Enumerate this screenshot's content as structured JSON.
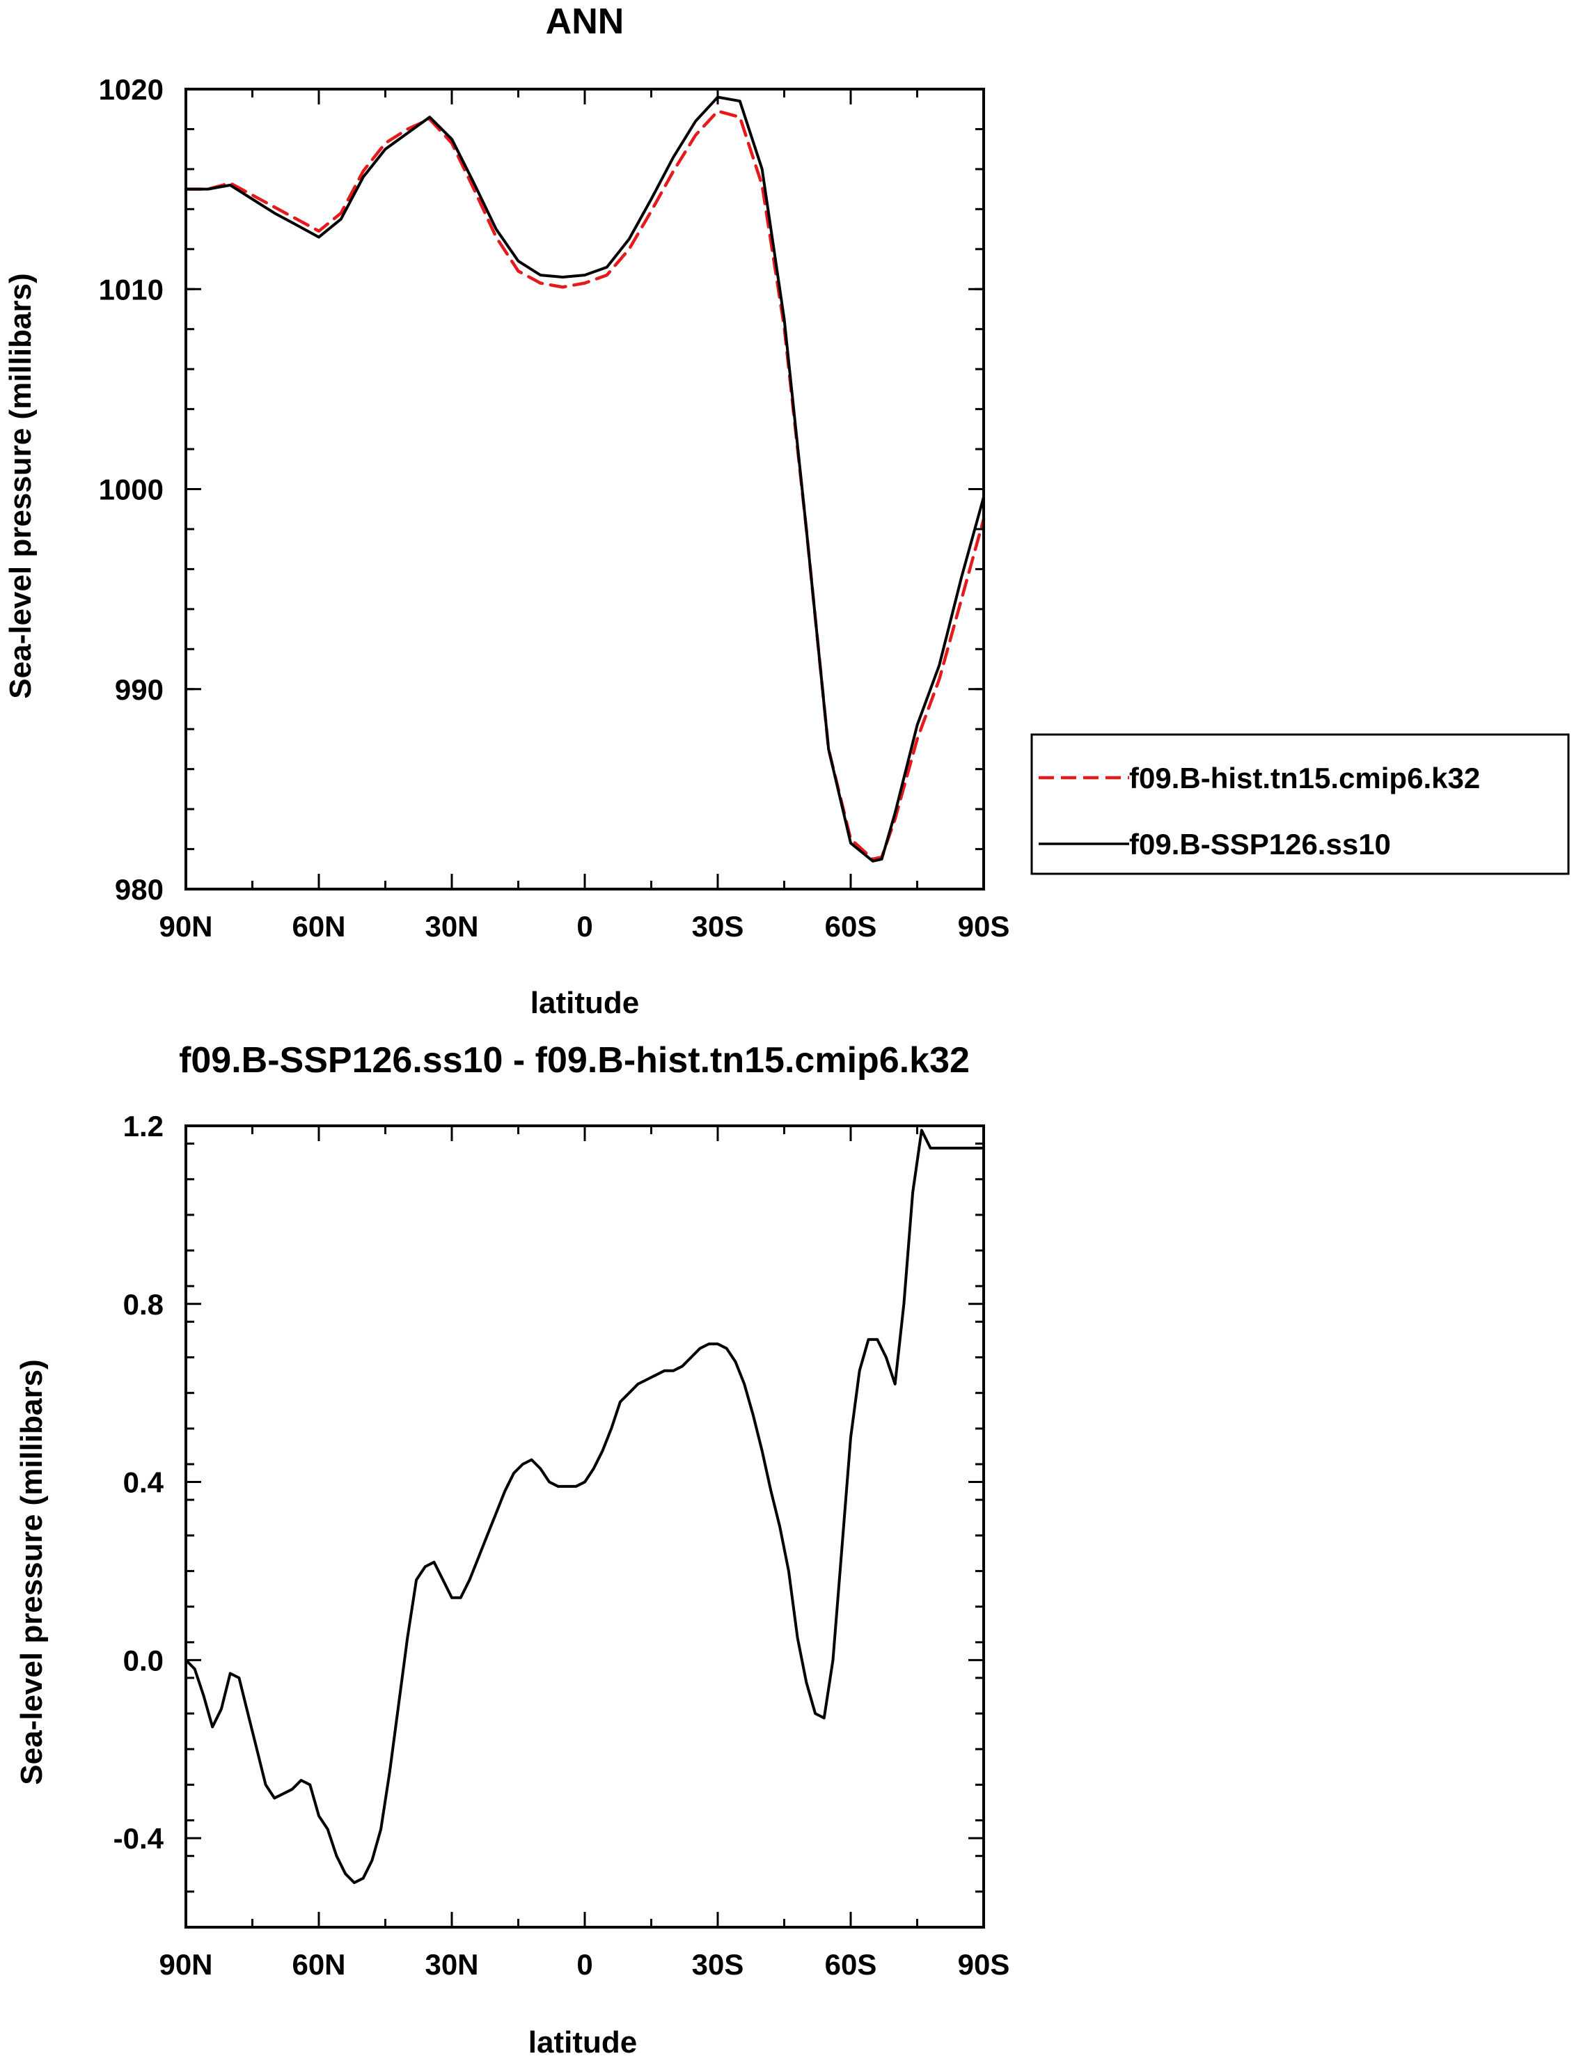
{
  "chart_data": [
    {
      "type": "line",
      "title": "ANN",
      "xlabel": "latitude",
      "ylabel": "Sea-level pressure (millibars)",
      "x_ticks": [
        "90N",
        "60N",
        "30N",
        "0",
        "30S",
        "60S",
        "90S"
      ],
      "x_tick_values": [
        90,
        60,
        30,
        0,
        -30,
        -60,
        -90
      ],
      "xlim": [
        90,
        -90
      ],
      "ylim": [
        980,
        1020
      ],
      "y_ticks": [
        "980",
        "990",
        "1000",
        "1010",
        "1020"
      ],
      "y_tick_values": [
        980,
        990,
        1000,
        1010,
        1020
      ],
      "grid": false,
      "legend_position": "right",
      "series": [
        {
          "name": "f09.B-hist.tn15.cmip6.k32",
          "color": "#e41a1c",
          "style": "dashed",
          "x": [
            90,
            85,
            80,
            75,
            70,
            65,
            60,
            55,
            50,
            45,
            40,
            35,
            30,
            25,
            20,
            15,
            10,
            5,
            0,
            -5,
            -10,
            -15,
            -20,
            -25,
            -30,
            -35,
            -40,
            -45,
            -50,
            -55,
            -60,
            -65,
            -67,
            -70,
            -75,
            -80,
            -85,
            -90
          ],
          "values": [
            1015.0,
            1015.0,
            1015.3,
            1014.7,
            1014.1,
            1013.5,
            1012.9,
            1013.8,
            1015.9,
            1017.3,
            1018.0,
            1018.5,
            1017.3,
            1015.0,
            1012.6,
            1010.9,
            1010.3,
            1010.1,
            1010.3,
            1010.7,
            1012.0,
            1013.9,
            1015.9,
            1017.7,
            1018.9,
            1018.6,
            1015.2,
            1008.1,
            998.0,
            987.0,
            982.5,
            981.5,
            981.6,
            983.5,
            987.5,
            990.5,
            994.5,
            998.5
          ]
        },
        {
          "name": "f09.B-SSP126.ss10",
          "color": "#000000",
          "style": "solid",
          "x": [
            90,
            85,
            80,
            75,
            70,
            65,
            60,
            55,
            50,
            45,
            40,
            35,
            30,
            25,
            20,
            15,
            10,
            5,
            0,
            -5,
            -10,
            -15,
            -20,
            -25,
            -30,
            -35,
            -40,
            -45,
            -50,
            -55,
            -60,
            -65,
            -67,
            -70,
            -75,
            -80,
            -85,
            -90
          ],
          "values": [
            1015.0,
            1015.0,
            1015.2,
            1014.5,
            1013.8,
            1013.2,
            1012.6,
            1013.5,
            1015.6,
            1017.0,
            1017.8,
            1018.6,
            1017.5,
            1015.3,
            1013.0,
            1011.4,
            1010.7,
            1010.6,
            1010.7,
            1011.1,
            1012.5,
            1014.5,
            1016.6,
            1018.4,
            1019.6,
            1019.4,
            1016.0,
            1008.5,
            998.0,
            987.0,
            982.3,
            981.4,
            981.5,
            983.8,
            988.2,
            991.2,
            995.6,
            999.6
          ]
        }
      ]
    },
    {
      "type": "line",
      "title": "f09.B-SSP126.ss10 - f09.B-hist.tn15.cmip6.k32",
      "xlabel": "latitude",
      "ylabel": "Sea-level pressure (millibars)",
      "x_ticks": [
        "90N",
        "60N",
        "30N",
        "0",
        "30S",
        "60S",
        "90S"
      ],
      "x_tick_values": [
        90,
        60,
        30,
        0,
        -30,
        -60,
        -90
      ],
      "xlim": [
        90,
        -90
      ],
      "ylim": [
        -0.6,
        1.2
      ],
      "y_ticks": [
        "-0.4",
        "0.0",
        "0.4",
        "0.8",
        "1.2"
      ],
      "y_tick_values": [
        -0.4,
        0.0,
        0.4,
        0.8,
        1.2
      ],
      "grid": false,
      "series": [
        {
          "color": "#000000",
          "style": "solid",
          "x": [
            90,
            88,
            86,
            84,
            82,
            80,
            78,
            76,
            74,
            72,
            70,
            68,
            66,
            64,
            62,
            60,
            58,
            56,
            54,
            52,
            50,
            48,
            46,
            44,
            42,
            40,
            38,
            36,
            34,
            32,
            30,
            28,
            26,
            24,
            22,
            20,
            18,
            16,
            14,
            12,
            10,
            8,
            6,
            4,
            2,
            0,
            -2,
            -4,
            -6,
            -8,
            -10,
            -12,
            -14,
            -16,
            -18,
            -20,
            -22,
            -24,
            -26,
            -28,
            -30,
            -32,
            -34,
            -36,
            -38,
            -40,
            -42,
            -44,
            -46,
            -48,
            -50,
            -52,
            -54,
            -56,
            -58,
            -60,
            -62,
            -64,
            -66,
            -68,
            -70,
            -72,
            -74,
            -76,
            -78,
            -80,
            -82,
            -84,
            -86,
            -88,
            -90
          ],
          "values": [
            0.0,
            -0.02,
            -0.08,
            -0.15,
            -0.11,
            -0.03,
            -0.04,
            -0.12,
            -0.2,
            -0.28,
            -0.31,
            -0.3,
            -0.29,
            -0.27,
            -0.28,
            -0.35,
            -0.38,
            -0.44,
            -0.48,
            -0.5,
            -0.49,
            -0.45,
            -0.38,
            -0.25,
            -0.1,
            0.05,
            0.18,
            0.21,
            0.22,
            0.18,
            0.14,
            0.14,
            0.18,
            0.23,
            0.28,
            0.33,
            0.38,
            0.42,
            0.44,
            0.45,
            0.43,
            0.4,
            0.39,
            0.39,
            0.39,
            0.4,
            0.43,
            0.47,
            0.52,
            0.58,
            0.6,
            0.62,
            0.63,
            0.64,
            0.65,
            0.65,
            0.66,
            0.68,
            0.7,
            0.71,
            0.71,
            0.7,
            0.67,
            0.62,
            0.55,
            0.47,
            0.38,
            0.3,
            0.2,
            0.05,
            -0.05,
            -0.12,
            -0.13,
            0.0,
            0.25,
            0.5,
            0.65,
            0.72,
            0.72,
            0.68,
            0.62,
            0.8,
            1.05,
            1.19,
            1.15,
            1.15,
            1.15,
            1.15,
            1.15,
            1.15,
            1.15
          ]
        }
      ]
    }
  ]
}
